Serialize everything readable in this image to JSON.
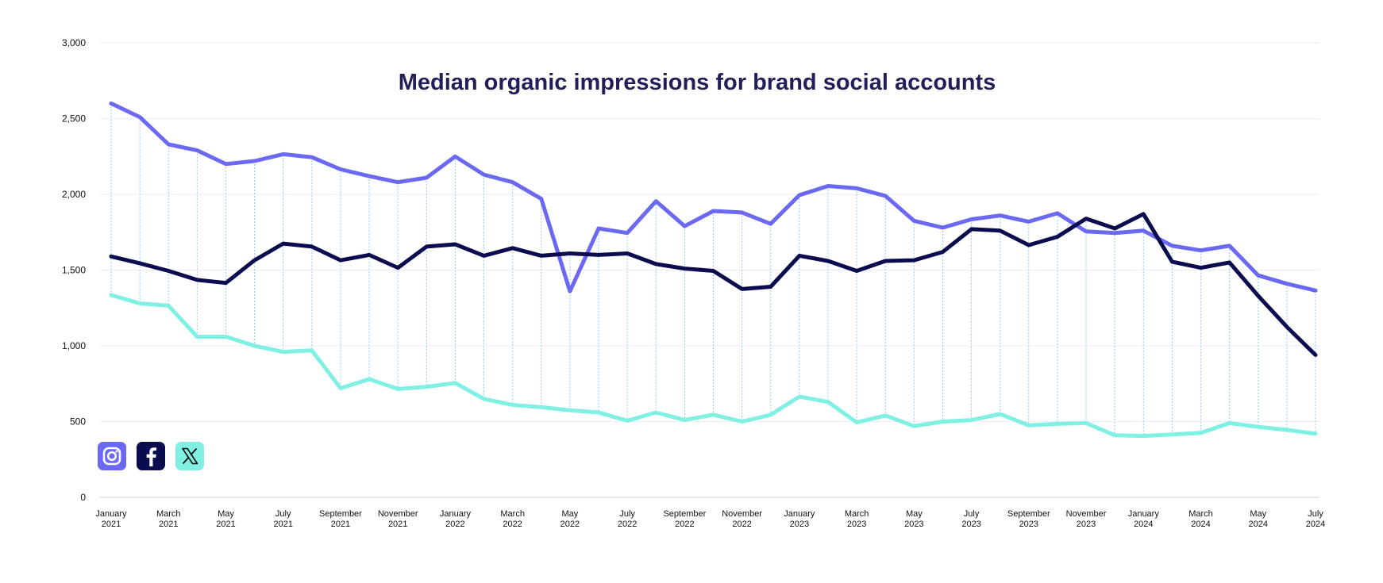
{
  "chart_data": {
    "type": "line",
    "title": "Median organic impressions for brand social accounts",
    "xlabel": "",
    "ylabel": "",
    "ylim": [
      0,
      3000
    ],
    "yticks": [
      0,
      500,
      1000,
      1500,
      2000,
      2500,
      3000
    ],
    "ytick_labels": [
      "0",
      "500",
      "1,000",
      "1,500",
      "2,000",
      "2,500",
      "3,000"
    ],
    "grid": true,
    "x": [
      "2021-01",
      "2021-02",
      "2021-03",
      "2021-04",
      "2021-05",
      "2021-06",
      "2021-07",
      "2021-08",
      "2021-09",
      "2021-10",
      "2021-11",
      "2021-12",
      "2022-01",
      "2022-02",
      "2022-03",
      "2022-04",
      "2022-05",
      "2022-06",
      "2022-07",
      "2022-08",
      "2022-09",
      "2022-10",
      "2022-11",
      "2022-12",
      "2023-01",
      "2023-02",
      "2023-03",
      "2023-04",
      "2023-05",
      "2023-06",
      "2023-07",
      "2023-08",
      "2023-09",
      "2023-10",
      "2023-11",
      "2023-12",
      "2024-01",
      "2024-02",
      "2024-03",
      "2024-04",
      "2024-05",
      "2024-06",
      "2024-07"
    ],
    "xtick_labels": [
      [
        "January",
        "2021"
      ],
      [
        "March",
        "2021"
      ],
      [
        "May",
        "2021"
      ],
      [
        "July",
        "2021"
      ],
      [
        "September",
        "2021"
      ],
      [
        "November",
        "2021"
      ],
      [
        "January",
        "2022"
      ],
      [
        "March",
        "2022"
      ],
      [
        "May",
        "2022"
      ],
      [
        "July",
        "2022"
      ],
      [
        "September",
        "2022"
      ],
      [
        "November",
        "2022"
      ],
      [
        "January",
        "2023"
      ],
      [
        "March",
        "2023"
      ],
      [
        "May",
        "2023"
      ],
      [
        "July",
        "2023"
      ],
      [
        "September",
        "2023"
      ],
      [
        "November",
        "2023"
      ],
      [
        "January",
        "2024"
      ],
      [
        "March",
        "2024"
      ],
      [
        "May",
        "2024"
      ],
      [
        "July",
        "2024"
      ]
    ],
    "xtick_every": 2,
    "series": [
      {
        "icon": "instagram-icon",
        "color": "#6b69f2",
        "values": [
          2600,
          2510,
          2330,
          2290,
          2200,
          2220,
          2265,
          2245,
          2165,
          2120,
          2080,
          2110,
          2250,
          2130,
          2080,
          1970,
          1360,
          1775,
          1745,
          1955,
          1790,
          1890,
          1880,
          1805,
          1995,
          2055,
          2040,
          1990,
          1825,
          1780,
          1835,
          1860,
          1820,
          1875,
          1755,
          1745,
          1760,
          1660,
          1630,
          1660,
          1465,
          1410,
          1365
        ]
      },
      {
        "icon": "facebook-icon",
        "color": "#0b0b4f",
        "values": [
          1590,
          1545,
          1495,
          1435,
          1415,
          1565,
          1675,
          1655,
          1565,
          1600,
          1515,
          1655,
          1670,
          1595,
          1645,
          1595,
          1610,
          1600,
          1610,
          1540,
          1510,
          1495,
          1375,
          1390,
          1595,
          1560,
          1495,
          1560,
          1565,
          1620,
          1770,
          1760,
          1665,
          1720,
          1840,
          1775,
          1870,
          1555,
          1515,
          1550,
          1330,
          1125,
          940
        ]
      },
      {
        "icon": "x-icon",
        "color": "#7ff0e3",
        "values": [
          1335,
          1280,
          1265,
          1060,
          1060,
          1000,
          960,
          970,
          720,
          780,
          715,
          730,
          755,
          650,
          610,
          595,
          575,
          560,
          505,
          560,
          510,
          545,
          500,
          545,
          665,
          630,
          495,
          540,
          470,
          500,
          510,
          550,
          475,
          485,
          490,
          410,
          405,
          415,
          425,
          490,
          465,
          445,
          420
        ]
      }
    ],
    "guide_color": "#8fcaf5",
    "grid_color": "#e9eef8",
    "legend_placement": "bottom-left (icons)"
  }
}
